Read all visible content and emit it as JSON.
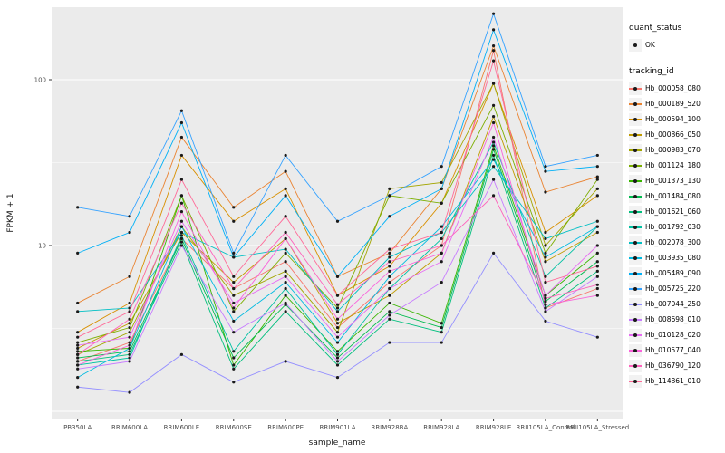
{
  "chart_data": {
    "type": "line",
    "title": "",
    "xlabel": "sample_name",
    "ylabel": "FPKM + 1",
    "y_scale": "log10",
    "ylim": [
      0.9,
      280
    ],
    "grid": true,
    "panel_bg": "#EBEBEB",
    "grid_color": "#FFFFFF",
    "point_color": "#1a1a1a",
    "y_ticks": [
      {
        "value": 100,
        "label": "100"
      },
      {
        "value": 10,
        "label": "10"
      }
    ],
    "y_major_gridlines": [
      1,
      10,
      100
    ],
    "y_minor_gridlines": [
      3.1623,
      31.6228
    ],
    "categories": [
      "PB350LA",
      "RRIM600LA",
      "RRIM600LE",
      "RRIM600SE",
      "RRIM600PE",
      "RRIM901LA",
      "RRIM928BA",
      "RRIM928LA",
      "RRIM928LE",
      "RRII105LA_Control",
      "RRII105LA_Stressed"
    ],
    "series": [
      {
        "name": "Hb_000058_080",
        "color": "#F8766D",
        "values": [
          2.0,
          2.6,
          11,
          5.5,
          8.0,
          3.2,
          6.0,
          10,
          150,
          4.2,
          5.5
        ]
      },
      {
        "name": "Hb_000189_520",
        "color": "#EA8331",
        "values": [
          4.5,
          6.5,
          45,
          17,
          28,
          6.5,
          9.0,
          22,
          160,
          21,
          26
        ]
      },
      {
        "name": "Hb_000594_100",
        "color": "#D89000",
        "values": [
          3.0,
          4.5,
          35,
          14,
          22,
          5.0,
          7.5,
          18,
          95,
          12,
          20
        ]
      },
      {
        "name": "Hb_000866_050",
        "color": "#C09B00",
        "values": [
          2.4,
          3.4,
          12,
          6.0,
          11,
          3.4,
          5.0,
          9.0,
          60,
          8.0,
          12
        ]
      },
      {
        "name": "Hb_000983_070",
        "color": "#A3A500",
        "values": [
          2.2,
          3.0,
          13,
          5.0,
          7.0,
          3.0,
          22,
          24,
          95,
          10,
          22
        ]
      },
      {
        "name": "Hb_001124_180",
        "color": "#7CAE00",
        "values": [
          2.6,
          3.2,
          20,
          4.0,
          9.0,
          4.2,
          20,
          18,
          70,
          9.0,
          25
        ]
      },
      {
        "name": "Hb_001373_130",
        "color": "#39B600",
        "values": [
          2.3,
          2.4,
          20,
          1.9,
          5.0,
          2.3,
          4.5,
          3.4,
          40,
          5.0,
          9.0
        ]
      },
      {
        "name": "Hb_001484_080",
        "color": "#00BB4E",
        "values": [
          2.1,
          2.3,
          11,
          2.1,
          4.4,
          2.1,
          4.0,
          3.2,
          38,
          4.6,
          8.0
        ]
      },
      {
        "name": "Hb_001621_060",
        "color": "#00BF7D",
        "values": [
          2.0,
          2.2,
          10.5,
          1.8,
          4.0,
          1.9,
          3.6,
          3.0,
          35,
          4.2,
          7.0
        ]
      },
      {
        "name": "Hb_001792_030",
        "color": "#00C1A3",
        "values": [
          1.9,
          2.1,
          11.5,
          2.3,
          5.5,
          2.2,
          5.5,
          11,
          42,
          6.5,
          13
        ]
      },
      {
        "name": "Hb_002078_300",
        "color": "#00BFC4",
        "values": [
          4.0,
          4.2,
          12,
          8.5,
          9.5,
          4.0,
          8.5,
          12,
          30,
          11,
          14
        ]
      },
      {
        "name": "Hb_003935_080",
        "color": "#00BAE0",
        "values": [
          1.6,
          2.4,
          13,
          3.5,
          6.0,
          2.6,
          6.5,
          13,
          33,
          8.5,
          13
        ]
      },
      {
        "name": "Hb_005489_090",
        "color": "#00B0F6",
        "values": [
          9.0,
          12,
          55,
          8.5,
          20,
          6.5,
          15,
          22,
          200,
          28,
          30
        ]
      },
      {
        "name": "Hb_005725_220",
        "color": "#35A2FF",
        "values": [
          17,
          15,
          65,
          9.0,
          35,
          14,
          20,
          30,
          250,
          30,
          35
        ]
      },
      {
        "name": "Hb_007044_250",
        "color": "#9590FF",
        "values": [
          1.4,
          1.3,
          2.2,
          1.5,
          2.0,
          1.6,
          2.6,
          2.6,
          9.0,
          3.5,
          2.8
        ]
      },
      {
        "name": "Hb_008698_010",
        "color": "#C77CFF",
        "values": [
          1.8,
          2.0,
          10,
          3.0,
          4.5,
          2.0,
          3.8,
          6.0,
          25,
          4.0,
          6.5
        ]
      },
      {
        "name": "Hb_010128_020",
        "color": "#E76BF3",
        "values": [
          2.5,
          2.8,
          14,
          4.5,
          6.5,
          2.8,
          5.5,
          8.0,
          45,
          5.0,
          10
        ]
      },
      {
        "name": "Hb_010577_040",
        "color": "#FA62DB",
        "values": [
          1.9,
          2.5,
          16,
          4.2,
          11,
          3.6,
          7.0,
          9.0,
          55,
          4.4,
          5.0
        ]
      },
      {
        "name": "Hb_036790_120",
        "color": "#FF62BC",
        "values": [
          2.2,
          3.6,
          18,
          5.5,
          12,
          4.4,
          8.0,
          10,
          20,
          4.8,
          5.8
        ]
      },
      {
        "name": "Hb_114861_010",
        "color": "#FF6A98",
        "values": [
          2.8,
          4.0,
          25,
          6.5,
          15,
          5.0,
          9.5,
          12,
          130,
          6.0,
          7.5
        ]
      }
    ],
    "legend_position": "right"
  },
  "legend": {
    "quant_status_title": "quant_status",
    "ok_label": "OK",
    "tracking_title": "tracking_id"
  }
}
